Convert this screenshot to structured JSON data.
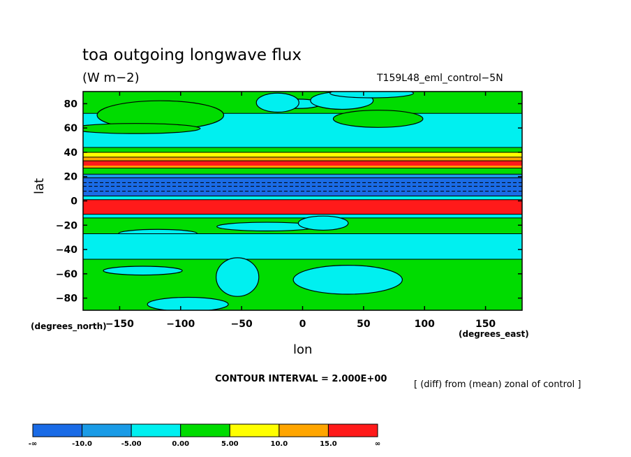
{
  "chart_data": {
    "type": "heatmap",
    "title": "toa outgoing longwave flux",
    "subtitle": "(W m−2)",
    "run_label": "T159L48_eml_control−5N",
    "xlabel": "lon",
    "ylabel": "lat",
    "x_units": "(degrees_east)",
    "y_units": "(degrees_north)",
    "xlim": [
      -180,
      180
    ],
    "ylim": [
      -90,
      90
    ],
    "x_ticks": [
      -150,
      -100,
      -50,
      0,
      50,
      100,
      150
    ],
    "x_tick_labels": [
      "−150",
      "−100",
      "−50",
      "0",
      "50",
      "100",
      "150"
    ],
    "y_ticks": [
      80,
      60,
      40,
      20,
      0,
      -20,
      -40,
      -60,
      -80
    ],
    "y_tick_labels": [
      "80",
      "60",
      "40",
      "20",
      "0",
      "−20",
      "−40",
      "−60",
      "−80"
    ],
    "contour_interval_text": "CONTOUR INTERVAL = 2.000E+00",
    "note": "[ (diff) from (mean) zonal of control ]",
    "levels": [
      "-∞",
      "-10.0",
      "-5.00",
      "0.00",
      "5.00",
      "10.0",
      "15.0",
      "∞"
    ],
    "colors": [
      "#1a6be6",
      "#1a9be6",
      "#00f0f0",
      "#00dc00",
      "#ffff00",
      "#ffa500",
      "#ff1a1a"
    ],
    "zonal_bands": [
      {
        "lat_from": 90,
        "lat_to": 72,
        "class": 3,
        "patches": 4
      },
      {
        "lat_from": 72,
        "lat_to": 44,
        "class": 2,
        "patches": 3
      },
      {
        "lat_from": 44,
        "lat_to": 40,
        "class": 3,
        "patches": 0
      },
      {
        "lat_from": 40,
        "lat_to": 36,
        "class": 4,
        "patches": 0
      },
      {
        "lat_from": 36,
        "lat_to": 27,
        "class": 5,
        "patches": 0
      },
      {
        "lat_from": 33,
        "lat_to": 29,
        "class": 6,
        "patches": 0
      },
      {
        "lat_from": 27,
        "lat_to": 22,
        "class": 3,
        "patches": 0
      },
      {
        "lat_from": 22,
        "lat_to": 19,
        "class": 1,
        "patches": 0
      },
      {
        "lat_from": 19,
        "lat_to": 4,
        "class": 0,
        "patches": 0
      },
      {
        "lat_from": 4,
        "lat_to": 1,
        "class": 2,
        "patches": 0
      },
      {
        "lat_from": 1,
        "lat_to": -11,
        "class": 6,
        "patches": 0
      },
      {
        "lat_from": -11,
        "lat_to": -14,
        "class": 2,
        "patches": 0
      },
      {
        "lat_from": -14,
        "lat_to": -27,
        "class": 3,
        "patches": 3
      },
      {
        "lat_from": -27,
        "lat_to": -48,
        "class": 2,
        "patches": 0
      },
      {
        "lat_from": -48,
        "lat_to": -90,
        "class": 3,
        "patches": 4
      }
    ]
  }
}
